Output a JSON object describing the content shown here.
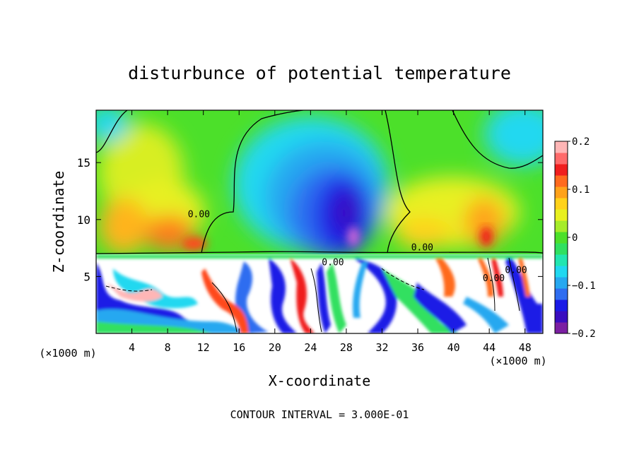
{
  "chart_data": {
    "type": "heatmap",
    "title": "disturbunce of potential temperature",
    "xlabel": "X-coordinate",
    "ylabel": "Z-coordinate",
    "x_unit_left": "(×1000 m)",
    "x_unit_right": "(×1000 m)",
    "footer": "CONTOUR INTERVAL = 3.000E-01",
    "x_ticks": [
      4,
      8,
      12,
      16,
      20,
      24,
      28,
      32,
      36,
      40,
      44,
      48
    ],
    "y_ticks": [
      5,
      10,
      15
    ],
    "xlim": [
      0,
      50
    ],
    "ylim": [
      0,
      19.6
    ],
    "colorbar": {
      "ticks": [
        0.2,
        0.1,
        0,
        -0.1,
        -0.2
      ],
      "tick_labels": [
        "0.2",
        "0.1",
        "0",
        "-0.1",
        "-0.2"
      ],
      "range": [
        -0.2,
        0.2
      ],
      "colors": [
        "#7b1fa2",
        "#3a0dbf",
        "#1a1ae6",
        "#2f6df0",
        "#27a8f0",
        "#21d8f0",
        "#22e6b0",
        "#30e060",
        "#4ce02a",
        "#a6ec2a",
        "#e8f020",
        "#ffd21a",
        "#ffa21a",
        "#ff6a1e",
        "#f01e1e",
        "#ff6a6a",
        "#ffb6b6"
      ]
    },
    "contour_labels": [
      {
        "text": "0.00",
        "x": 11.5,
        "z": 10.2
      },
      {
        "text": "0.00",
        "x": 36.5,
        "z": 7.3
      },
      {
        "text": "0.00",
        "x": 26.5,
        "z": 6.0
      },
      {
        "text": "0.00",
        "x": 44.5,
        "z": 4.6
      },
      {
        "text": "0.00",
        "x": 47.0,
        "z": 5.3
      }
    ],
    "upper_layer": {
      "z_range": [
        7.2,
        19.6
      ],
      "description_values": [
        {
          "x": 3,
          "z": 10,
          "value": 0.1
        },
        {
          "x": 9,
          "z": 9,
          "value": 0.12
        },
        {
          "x": 28,
          "z": 9,
          "value": -0.18
        },
        {
          "x": 26,
          "z": 14,
          "value": -0.1
        },
        {
          "x": 45,
          "z": 10,
          "value": 0.1
        },
        {
          "x": 48,
          "z": 18,
          "value": -0.05
        }
      ]
    }
  }
}
